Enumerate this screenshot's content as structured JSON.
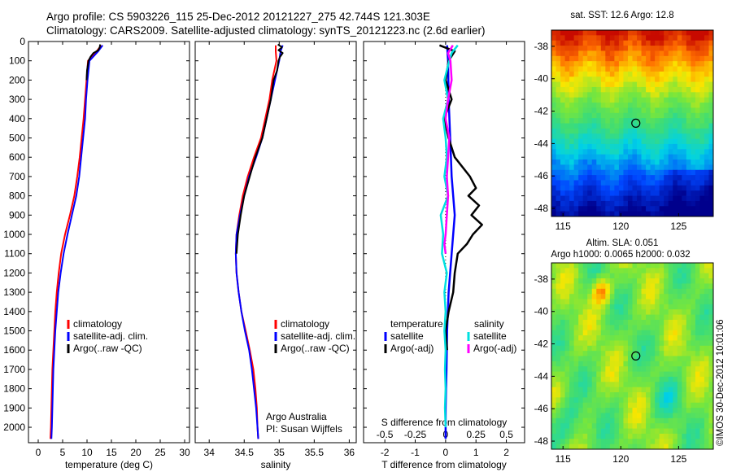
{
  "header": {
    "line1": "Argo profile: CS 5903226_115 25-Dec-2012 20121227_275 42.744S 121.303E",
    "line2": "Climatology: CARS2009. Satellite-adjusted climatology: synTS_20121223.nc (2.6d earlier)"
  },
  "colors": {
    "climatology": "#ff0000",
    "satellite": "#0000ff",
    "argo": "#000000",
    "sat_salinity": "#00e0e0",
    "argo_salinity": "#ff00ff"
  },
  "chart_data": [
    {
      "type": "line",
      "xlabel": "temperature (deg C)",
      "ylabel": "",
      "xlim": [
        -2,
        31
      ],
      "ylim": [
        2080,
        0
      ],
      "xticks": [
        "0",
        "5",
        "10",
        "15",
        "20",
        "25",
        "30"
      ],
      "yticks": [
        "0",
        "100",
        "200",
        "300",
        "400",
        "500",
        "600",
        "700",
        "800",
        "900",
        "1000",
        "1100",
        "1200",
        "1300",
        "1400",
        "1500",
        "1600",
        "1700",
        "1800",
        "1900",
        "2000"
      ],
      "legend": [
        "climatology",
        "satellite-adj. clim.",
        "Argo(..raw -QC)"
      ],
      "legend_position": "lower-right",
      "series": [
        {
          "name": "climatology",
          "depth": [
            20,
            50,
            100,
            200,
            300,
            400,
            500,
            600,
            700,
            800,
            900,
            1000,
            1100,
            1200,
            1300,
            1400,
            1500,
            1600,
            1700,
            1800,
            1900,
            2000,
            2060
          ],
          "values": [
            12.9,
            12.0,
            10.2,
            9.9,
            9.6,
            9.3,
            8.9,
            8.5,
            8.0,
            7.4,
            6.5,
            5.5,
            4.7,
            4.2,
            3.8,
            3.5,
            3.3,
            3.1,
            2.9,
            2.8,
            2.7,
            2.6,
            2.5
          ]
        },
        {
          "name": "satellite-adj. clim.",
          "depth": [
            20,
            50,
            100,
            200,
            300,
            400,
            500,
            600,
            700,
            800,
            900,
            1000,
            1100,
            1200,
            1300,
            1400,
            1500,
            1600,
            1700,
            1800,
            1900,
            2000,
            2060
          ],
          "values": [
            13.2,
            12.3,
            10.5,
            10.1,
            9.8,
            9.6,
            9.2,
            8.8,
            8.4,
            7.8,
            6.9,
            6.0,
            5.2,
            4.6,
            4.1,
            3.8,
            3.5,
            3.3,
            3.1,
            3.0,
            2.9,
            2.8,
            2.7
          ]
        },
        {
          "name": "Argo(..raw -QC)",
          "depth": [
            15,
            30,
            45,
            60,
            80,
            100,
            150,
            200
          ],
          "values": [
            12.7,
            12.6,
            12.3,
            11.3,
            10.7,
            10.3,
            10.0,
            9.9
          ]
        }
      ]
    },
    {
      "type": "line",
      "xlabel": "salinity",
      "xlim": [
        33.8,
        36.1
      ],
      "ylim": [
        2080,
        0
      ],
      "xticks": [
        "34",
        "34.5",
        "35",
        "35.5",
        "36"
      ],
      "legend": [
        "climatology",
        "satellite-adj. clim.",
        "Argo(..raw -QC)"
      ],
      "legend_position": "lower-right",
      "annotation": [
        "Argo Australia",
        "PI: Susan Wijffels"
      ],
      "series": [
        {
          "name": "climatology",
          "depth": [
            20,
            50,
            100,
            200,
            300,
            400,
            500,
            600,
            700,
            800,
            900,
            1000,
            1100,
            1200,
            1300,
            1400,
            1500,
            1600,
            1700,
            1800,
            1900,
            2000,
            2060
          ],
          "values": [
            34.95,
            34.95,
            34.96,
            34.9,
            34.86,
            34.8,
            34.74,
            34.64,
            34.55,
            34.48,
            34.43,
            34.39,
            34.38,
            34.39,
            34.42,
            34.46,
            34.52,
            34.58,
            34.63,
            34.66,
            34.68,
            34.69,
            34.7
          ]
        },
        {
          "name": "satellite-adj. clim.",
          "depth": [
            20,
            50,
            100,
            200,
            300,
            400,
            500,
            600,
            700,
            800,
            900,
            1000,
            1100,
            1200,
            1300,
            1400,
            1500,
            1600,
            1700,
            1800,
            1900,
            2000,
            2060
          ],
          "values": [
            35.05,
            35.02,
            35.0,
            34.94,
            34.88,
            34.82,
            34.76,
            34.67,
            34.57,
            34.5,
            34.44,
            34.39,
            34.38,
            34.39,
            34.42,
            34.46,
            34.51,
            34.57,
            34.61,
            34.64,
            34.67,
            34.69,
            34.7
          ]
        },
        {
          "name": "Argo(..raw -QC)",
          "depth": [
            15,
            30,
            45,
            60,
            80,
            100,
            150,
            200,
            300,
            400,
            500,
            600,
            700,
            800,
            900,
            1000,
            1100
          ],
          "values": [
            34.98,
            35.04,
            34.99,
            35.05,
            35.01,
            34.99,
            34.97,
            34.92,
            34.88,
            34.82,
            34.76,
            34.66,
            34.58,
            34.5,
            34.45,
            34.41,
            34.39
          ]
        }
      ]
    },
    {
      "type": "line",
      "xlabel": "T difference from climatology",
      "xlabel_top": "S difference from climatology",
      "xlim": [
        -2.7,
        2.6
      ],
      "ylim": [
        2080,
        0
      ],
      "xticks": [
        "-2",
        "-1",
        "0",
        "1",
        "2"
      ],
      "xticks_top": [
        "-0.5",
        "-0.25",
        "0",
        "0.25",
        "0.5"
      ],
      "legend_left_title": "temperature",
      "legend_right_title": "salinity",
      "legend_left": [
        "satellite",
        "Argo(-adj)"
      ],
      "legend_right": [
        "satellite",
        "Argo(-adj)"
      ],
      "series": [
        {
          "name": "T satellite",
          "depth": [
            20,
            100,
            300,
            500,
            700,
            800,
            900,
            1000,
            1100,
            1300,
            1500,
            1700,
            1900,
            2060
          ],
          "values": [
            0.05,
            0.08,
            0.1,
            0.15,
            0.2,
            0.25,
            0.3,
            0.25,
            0.2,
            0.1,
            0.05,
            0.03,
            0.0,
            0.0
          ]
        },
        {
          "name": "T Argo(-adj)",
          "depth": [
            20,
            50,
            100,
            200,
            300,
            400,
            500,
            600,
            700,
            760,
            800,
            850,
            900,
            950,
            1000,
            1050,
            1100,
            1200,
            1300,
            1400,
            1500,
            1600
          ],
          "values": [
            -0.2,
            0.3,
            0.1,
            0.0,
            0.2,
            -0.05,
            0.1,
            0.3,
            0.8,
            1.0,
            0.75,
            1.1,
            0.85,
            1.2,
            0.9,
            0.7,
            0.4,
            0.3,
            0.25,
            0.1,
            0.0,
            0.05
          ]
        },
        {
          "name": "S satellite",
          "depth": [
            20,
            60,
            100,
            200,
            300,
            400,
            500,
            600,
            700,
            800,
            900,
            1000,
            1100,
            1200,
            1300,
            1400,
            1500,
            1600,
            1700,
            1800,
            1900,
            2000
          ],
          "values": [
            0.1,
            0.05,
            0.03,
            -0.01,
            0.02,
            -0.02,
            0.0,
            0.01,
            -0.01,
            0.02,
            -0.04,
            -0.02,
            -0.03,
            0.01,
            -0.01,
            0.0,
            -0.01,
            0.0,
            -0.005,
            0.0,
            -0.005,
            0.0
          ]
        },
        {
          "name": "S Argo(-adj)",
          "depth": [
            20,
            60,
            100,
            200,
            300,
            400,
            500,
            600,
            700,
            800,
            900,
            1000,
            1050,
            1100
          ],
          "values": [
            0.06,
            0.02,
            0.04,
            0.05,
            0.02,
            0.0,
            0.03,
            0.02,
            0.01,
            0.02,
            0.01,
            0.0,
            -0.01,
            0.0
          ]
        }
      ]
    },
    {
      "type": "heatmap",
      "title": "sat. SST: 12.6  Argo: 12.8",
      "x_range": [
        114,
        128
      ],
      "y_range": [
        -48.5,
        -37
      ],
      "xticks": [
        "115",
        "120",
        "125"
      ],
      "yticks": [
        "-38",
        "-40",
        "-42",
        "-44",
        "-46",
        "-48"
      ],
      "marker": {
        "lon": 121.3,
        "lat": -42.744
      }
    },
    {
      "type": "heatmap",
      "title": "Altim. SLA: 0.051",
      "subtitle": "Argo h1000: 0.0065  h2000: 0.032",
      "x_range": [
        114,
        128
      ],
      "y_range": [
        -48.5,
        -37
      ],
      "xticks": [
        "115",
        "120",
        "125"
      ],
      "yticks": [
        "-38",
        "-40",
        "-42",
        "-44",
        "-46",
        "-48"
      ],
      "marker": {
        "lon": 121.3,
        "lat": -42.744
      }
    }
  ],
  "footer": {
    "stamp": "©IMOS 30-Dec-2012 10:01:06"
  }
}
